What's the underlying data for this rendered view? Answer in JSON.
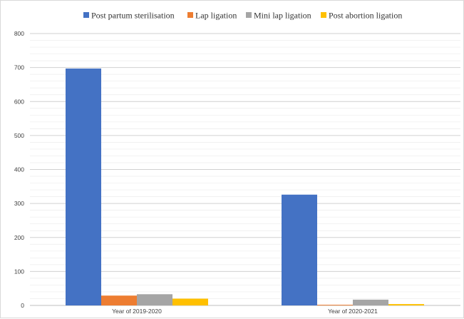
{
  "chart_data": {
    "type": "bar",
    "title": "",
    "xlabel": "",
    "ylabel": "",
    "categories": [
      "Year of  2019-2020",
      "Year of 2020-2021"
    ],
    "series": [
      {
        "name": "Post partum sterilisation",
        "color": "#4472c4",
        "values": [
          697,
          326
        ]
      },
      {
        "name": "Lap ligation",
        "color": "#ed7d31",
        "values": [
          29,
          2
        ]
      },
      {
        "name": "Mini lap ligation",
        "color": "#a5a5a5",
        "values": [
          33,
          17
        ]
      },
      {
        "name": "Post abortion ligation",
        "color": "#ffc000",
        "values": [
          20,
          4
        ]
      }
    ],
    "ylim": [
      0,
      800
    ],
    "yticks": [
      "0",
      "100",
      "200",
      "300",
      "400",
      "500",
      "600",
      "700",
      "800"
    ],
    "grid": true,
    "legend_position": "top"
  }
}
